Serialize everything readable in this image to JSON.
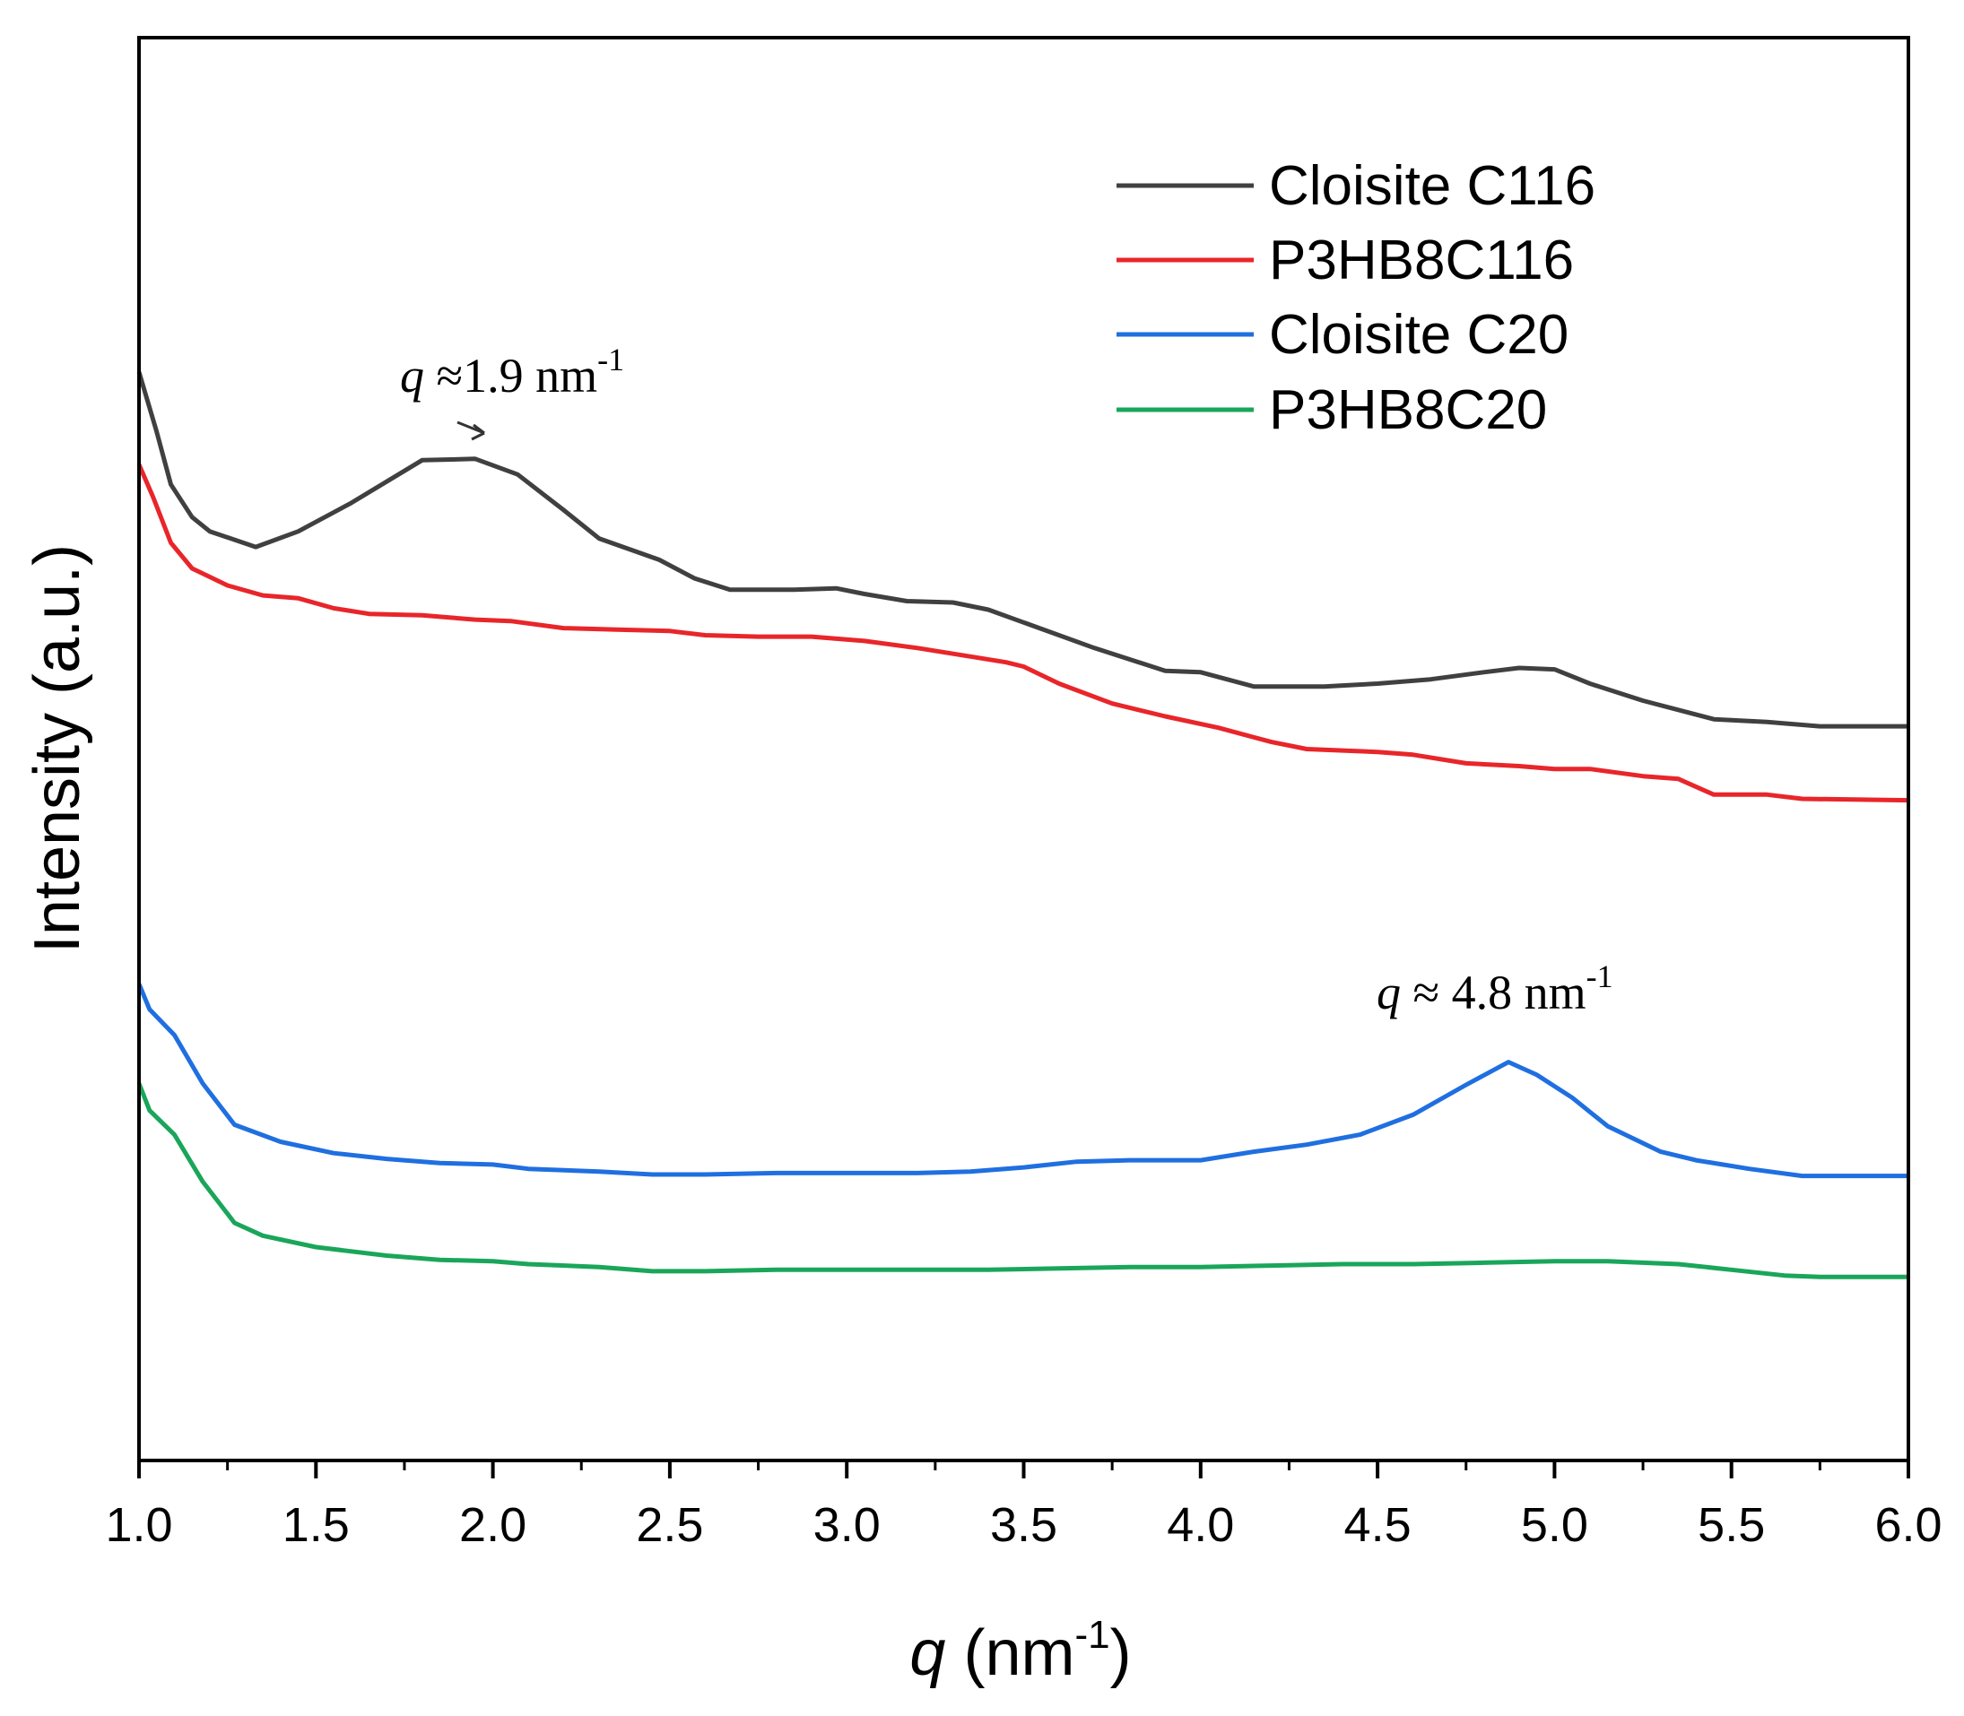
{
  "chart_data": {
    "type": "line",
    "title": "",
    "xlabel_var": "q",
    "xlabel_unit": " (nm",
    "xlabel_exp": "-1",
    "xlabel_close": ")",
    "ylabel": "Intensity (a.u.)",
    "xlim": [
      1.0,
      6.0
    ],
    "ylim": [
      0,
      100
    ],
    "y_ticks_shown": false,
    "grid": false,
    "legend_position": "top-right",
    "x_ticks": [
      1.0,
      1.5,
      2.0,
      2.5,
      3.0,
      3.5,
      4.0,
      4.5,
      5.0,
      5.5,
      6.0
    ],
    "x_tick_labels": [
      "1.0",
      "1.5",
      "2.0",
      "2.5",
      "3.0",
      "3.5",
      "4.0",
      "4.5",
      "5.0",
      "5.5",
      "6.0"
    ],
    "series": [
      {
        "name": "Cloisite C116",
        "color": "#404040",
        "points": [
          [
            1.0,
            76.5
          ],
          [
            1.05,
            72.3
          ],
          [
            1.09,
            68.6
          ],
          [
            1.15,
            66.3
          ],
          [
            1.2,
            65.3
          ],
          [
            1.33,
            64.2
          ],
          [
            1.45,
            65.3
          ],
          [
            1.6,
            67.3
          ],
          [
            1.8,
            70.3
          ],
          [
            1.95,
            70.4
          ],
          [
            2.07,
            69.3
          ],
          [
            2.2,
            66.8
          ],
          [
            2.3,
            64.8
          ],
          [
            2.47,
            63.3
          ],
          [
            2.57,
            62.0
          ],
          [
            2.67,
            61.2
          ],
          [
            2.85,
            61.2
          ],
          [
            2.97,
            61.3
          ],
          [
            3.05,
            60.9
          ],
          [
            3.17,
            60.4
          ],
          [
            3.3,
            60.3
          ],
          [
            3.4,
            59.8
          ],
          [
            3.5,
            58.9
          ],
          [
            3.7,
            57.1
          ],
          [
            3.9,
            55.5
          ],
          [
            4.0,
            55.4
          ],
          [
            4.15,
            54.4
          ],
          [
            4.35,
            54.4
          ],
          [
            4.5,
            54.6
          ],
          [
            4.65,
            54.9
          ],
          [
            4.8,
            55.4
          ],
          [
            4.9,
            55.7
          ],
          [
            5.0,
            55.6
          ],
          [
            5.1,
            54.6
          ],
          [
            5.25,
            53.4
          ],
          [
            5.45,
            52.1
          ],
          [
            5.6,
            51.9
          ],
          [
            5.75,
            51.6
          ],
          [
            6.0,
            51.6
          ]
        ]
      },
      {
        "name": "P3HB8C116",
        "color": "#e8262a",
        "points": [
          [
            1.0,
            70.0
          ],
          [
            1.04,
            67.7
          ],
          [
            1.09,
            64.5
          ],
          [
            1.15,
            62.7
          ],
          [
            1.25,
            61.5
          ],
          [
            1.35,
            60.8
          ],
          [
            1.45,
            60.6
          ],
          [
            1.55,
            59.9
          ],
          [
            1.65,
            59.5
          ],
          [
            1.8,
            59.4
          ],
          [
            1.95,
            59.1
          ],
          [
            2.05,
            59.0
          ],
          [
            2.2,
            58.5
          ],
          [
            2.35,
            58.4
          ],
          [
            2.5,
            58.3
          ],
          [
            2.6,
            58.0
          ],
          [
            2.75,
            57.9
          ],
          [
            2.9,
            57.9
          ],
          [
            3.05,
            57.6
          ],
          [
            3.2,
            57.1
          ],
          [
            3.35,
            56.5
          ],
          [
            3.45,
            56.1
          ],
          [
            3.5,
            55.8
          ],
          [
            3.6,
            54.6
          ],
          [
            3.75,
            53.2
          ],
          [
            3.9,
            52.3
          ],
          [
            4.05,
            51.5
          ],
          [
            4.2,
            50.5
          ],
          [
            4.3,
            50.0
          ],
          [
            4.5,
            49.8
          ],
          [
            4.6,
            49.6
          ],
          [
            4.75,
            49.0
          ],
          [
            4.9,
            48.8
          ],
          [
            5.0,
            48.6
          ],
          [
            5.1,
            48.6
          ],
          [
            5.25,
            48.1
          ],
          [
            5.35,
            47.9
          ],
          [
            5.45,
            46.8
          ],
          [
            5.6,
            46.8
          ],
          [
            5.7,
            46.5
          ],
          [
            6.0,
            46.4
          ]
        ]
      },
      {
        "name": "Cloisite C20",
        "color": "#1f6fe0",
        "points": [
          [
            1.0,
            33.5
          ],
          [
            1.03,
            31.7
          ],
          [
            1.1,
            29.9
          ],
          [
            1.18,
            26.5
          ],
          [
            1.27,
            23.6
          ],
          [
            1.4,
            22.4
          ],
          [
            1.55,
            21.6
          ],
          [
            1.7,
            21.2
          ],
          [
            1.85,
            20.9
          ],
          [
            2.0,
            20.8
          ],
          [
            2.1,
            20.5
          ],
          [
            2.3,
            20.3
          ],
          [
            2.45,
            20.1
          ],
          [
            2.6,
            20.1
          ],
          [
            2.8,
            20.2
          ],
          [
            3.0,
            20.2
          ],
          [
            3.2,
            20.2
          ],
          [
            3.35,
            20.3
          ],
          [
            3.5,
            20.6
          ],
          [
            3.65,
            21.0
          ],
          [
            3.8,
            21.1
          ],
          [
            4.0,
            21.1
          ],
          [
            4.15,
            21.7
          ],
          [
            4.3,
            22.2
          ],
          [
            4.45,
            22.9
          ],
          [
            4.6,
            24.3
          ],
          [
            4.75,
            26.4
          ],
          [
            4.87,
            28.0
          ],
          [
            4.95,
            27.1
          ],
          [
            5.05,
            25.5
          ],
          [
            5.15,
            23.5
          ],
          [
            5.3,
            21.7
          ],
          [
            5.4,
            21.1
          ],
          [
            5.55,
            20.5
          ],
          [
            5.7,
            20.0
          ],
          [
            6.0,
            20.0
          ]
        ]
      },
      {
        "name": "P3HB8C20",
        "color": "#1aa65a",
        "points": [
          [
            1.0,
            26.5
          ],
          [
            1.03,
            24.6
          ],
          [
            1.1,
            22.9
          ],
          [
            1.18,
            19.6
          ],
          [
            1.27,
            16.7
          ],
          [
            1.35,
            15.8
          ],
          [
            1.5,
            15.0
          ],
          [
            1.7,
            14.4
          ],
          [
            1.85,
            14.1
          ],
          [
            2.0,
            14.0
          ],
          [
            2.1,
            13.8
          ],
          [
            2.3,
            13.6
          ],
          [
            2.45,
            13.3
          ],
          [
            2.6,
            13.3
          ],
          [
            2.8,
            13.4
          ],
          [
            3.0,
            13.4
          ],
          [
            3.2,
            13.4
          ],
          [
            3.4,
            13.4
          ],
          [
            3.6,
            13.5
          ],
          [
            3.8,
            13.6
          ],
          [
            4.0,
            13.6
          ],
          [
            4.2,
            13.7
          ],
          [
            4.4,
            13.8
          ],
          [
            4.6,
            13.8
          ],
          [
            4.8,
            13.9
          ],
          [
            5.0,
            14.0
          ],
          [
            5.15,
            14.0
          ],
          [
            5.35,
            13.8
          ],
          [
            5.5,
            13.4
          ],
          [
            5.65,
            13.0
          ],
          [
            5.75,
            12.9
          ],
          [
            6.0,
            12.9
          ]
        ]
      }
    ],
    "annotations": [
      {
        "id": "peak-c116",
        "var": "q",
        "text": " ≈1.9 nm",
        "exp": "-1",
        "x": 1.9,
        "y": 70.4
      },
      {
        "id": "peak-c20",
        "var": "q",
        "text": " ≈ 4.8 nm",
        "exp": "-1",
        "x": 4.87,
        "y": 28.0
      }
    ]
  }
}
